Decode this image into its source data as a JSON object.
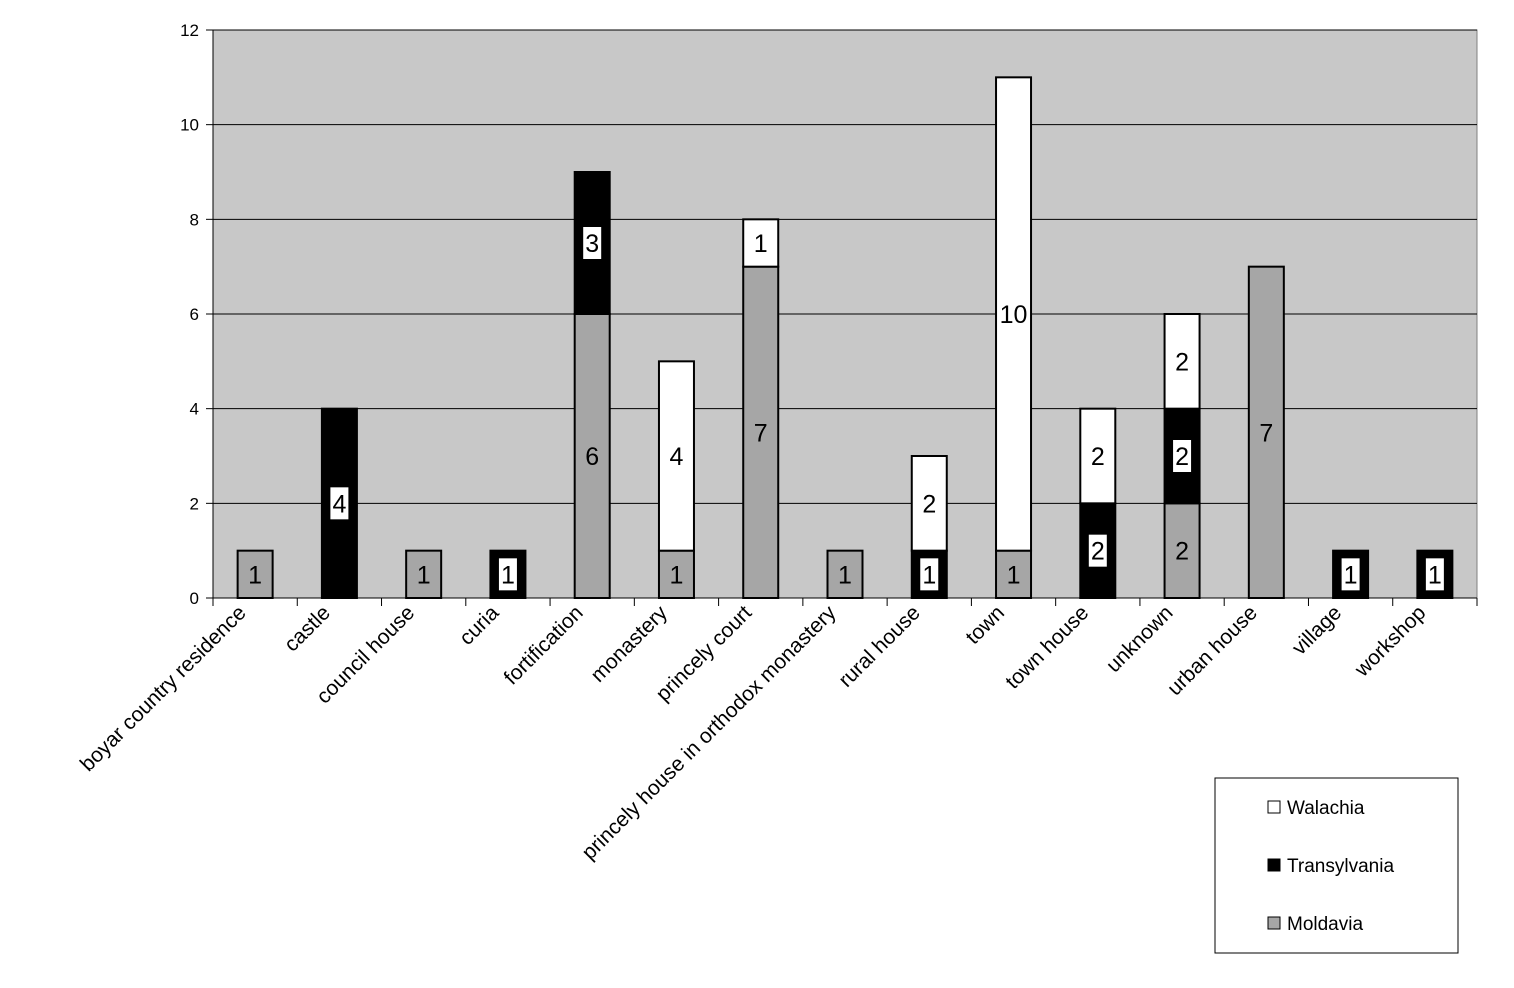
{
  "chart_data": {
    "type": "bar",
    "stacked": true,
    "title": "",
    "xlabel": "",
    "ylabel": "",
    "ylim": [
      0,
      12
    ],
    "yticks": [
      0,
      2,
      4,
      6,
      8,
      10,
      12
    ],
    "grid": true,
    "legend_position": "bottom-right",
    "categories": [
      "boyar country residence",
      "castle",
      "council house",
      "curia",
      "fortification",
      "monastery",
      "princely court",
      "princely house in orthodox monastery",
      "rural house",
      "town",
      "town house",
      "unknown",
      "urban house",
      "village",
      "workshop"
    ],
    "series": [
      {
        "name": "Moldavia",
        "color": "#a6a6a6",
        "values": [
          1,
          0,
          1,
          0,
          6,
          1,
          7,
          1,
          0,
          1,
          0,
          2,
          7,
          0,
          0
        ]
      },
      {
        "name": "Transylvania",
        "color": "#000000",
        "values": [
          0,
          4,
          0,
          1,
          3,
          0,
          0,
          0,
          1,
          0,
          2,
          2,
          0,
          1,
          1
        ]
      },
      {
        "name": "Walachia",
        "color": "#ffffff",
        "values": [
          0,
          0,
          0,
          0,
          0,
          4,
          1,
          0,
          2,
          10,
          2,
          2,
          0,
          0,
          0
        ]
      }
    ],
    "legend_order": [
      "Walachia",
      "Transylvania",
      "Moldavia"
    ],
    "plot_background": "#c8c8c8"
  }
}
